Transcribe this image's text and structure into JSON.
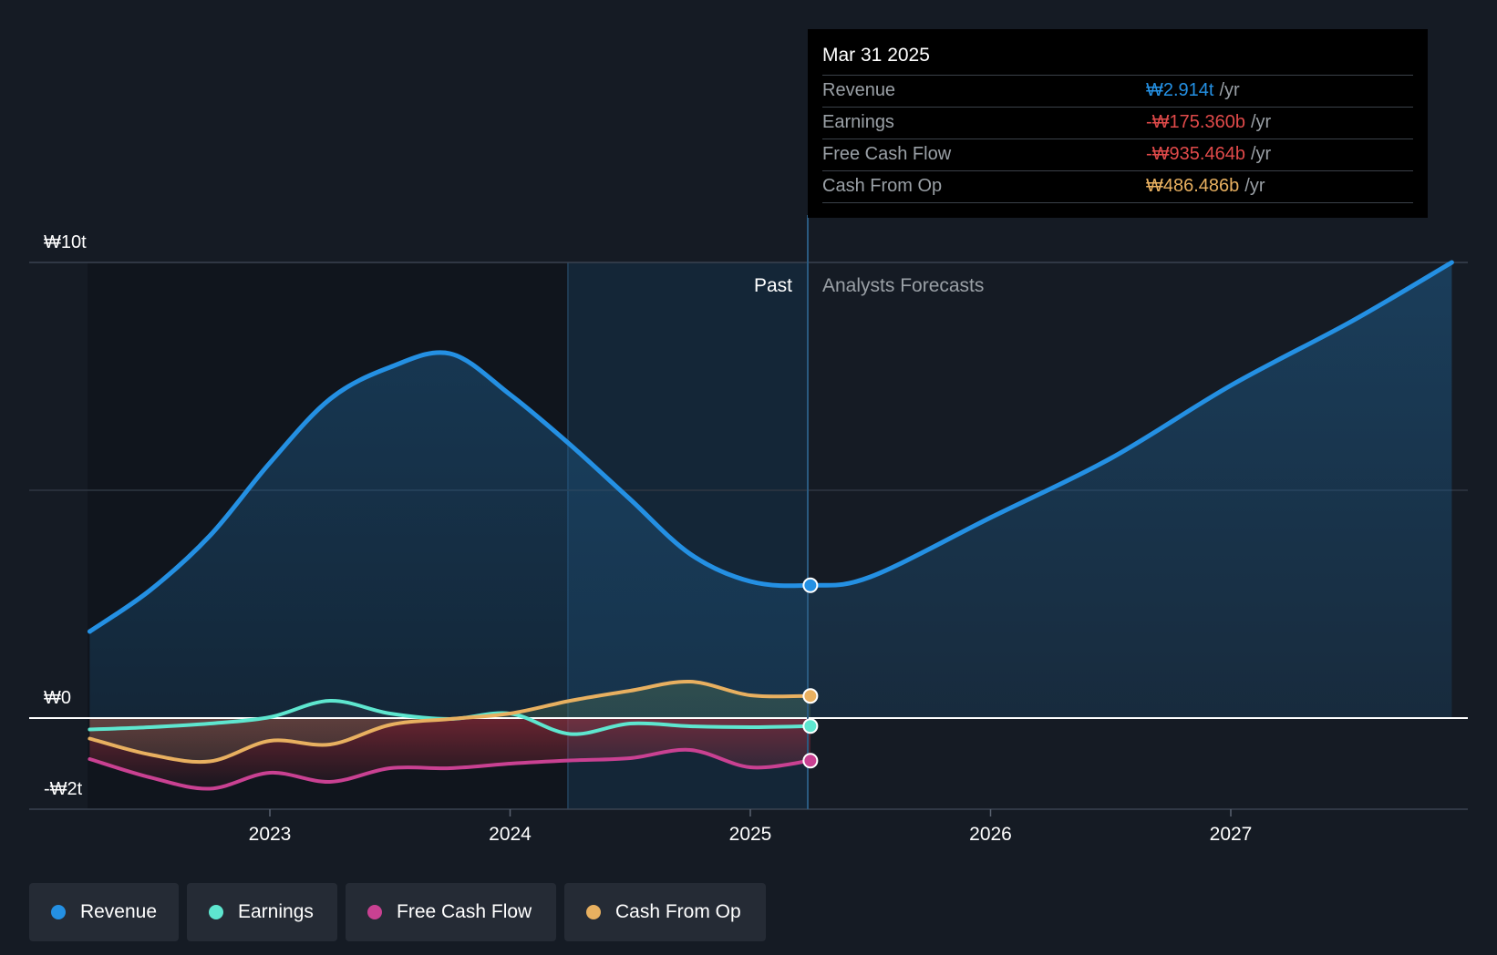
{
  "chart_data": {
    "type": "line",
    "title": "",
    "x_axis": {
      "ticks": [
        "2023",
        "2024",
        "2025",
        "2026",
        "2027"
      ]
    },
    "y_axis": {
      "labels": [
        "₩10t",
        "₩0",
        "-₩2t"
      ],
      "ylim": [
        -2,
        10
      ],
      "unit": "trillion KRW"
    },
    "past_label": "Past",
    "forecast_label": "Analysts Forecasts",
    "series": [
      {
        "name": "Revenue",
        "color": "#2490e3",
        "points": [
          [
            2022.25,
            1.9
          ],
          [
            2022.5,
            2.8
          ],
          [
            2022.75,
            4.0
          ],
          [
            2023.0,
            5.6
          ],
          [
            2023.25,
            7.0
          ],
          [
            2023.5,
            7.7
          ],
          [
            2023.75,
            8.0
          ],
          [
            2024.0,
            7.1
          ],
          [
            2024.25,
            6.0
          ],
          [
            2024.5,
            4.8
          ],
          [
            2024.75,
            3.6
          ],
          [
            2025.0,
            3.0
          ],
          [
            2025.25,
            2.914
          ],
          [
            2025.5,
            3.1
          ],
          [
            2026.0,
            4.4
          ],
          [
            2026.5,
            5.7
          ],
          [
            2027.0,
            7.3
          ],
          [
            2027.5,
            8.7
          ],
          [
            2027.92,
            10.0
          ]
        ]
      },
      {
        "name": "Earnings",
        "color": "#5ee6cf",
        "points": [
          [
            2022.25,
            -0.25
          ],
          [
            2022.5,
            -0.2
          ],
          [
            2022.75,
            -0.12
          ],
          [
            2023.0,
            0.02
          ],
          [
            2023.25,
            0.38
          ],
          [
            2023.5,
            0.1
          ],
          [
            2023.75,
            -0.02
          ],
          [
            2024.0,
            0.1
          ],
          [
            2024.25,
            -0.35
          ],
          [
            2024.5,
            -0.12
          ],
          [
            2024.75,
            -0.18
          ],
          [
            2025.0,
            -0.2
          ],
          [
            2025.25,
            -0.175
          ]
        ]
      },
      {
        "name": "Free Cash Flow",
        "color": "#c94192",
        "points": [
          [
            2022.25,
            -0.9
          ],
          [
            2022.5,
            -1.3
          ],
          [
            2022.75,
            -1.55
          ],
          [
            2023.0,
            -1.2
          ],
          [
            2023.25,
            -1.4
          ],
          [
            2023.5,
            -1.1
          ],
          [
            2023.75,
            -1.1
          ],
          [
            2024.0,
            -1.0
          ],
          [
            2024.25,
            -0.93
          ],
          [
            2024.5,
            -0.88
          ],
          [
            2024.75,
            -0.7
          ],
          [
            2025.0,
            -1.08
          ],
          [
            2025.25,
            -0.935
          ]
        ]
      },
      {
        "name": "Cash From Op",
        "color": "#e8b060",
        "points": [
          [
            2022.25,
            -0.45
          ],
          [
            2022.5,
            -0.8
          ],
          [
            2022.75,
            -0.95
          ],
          [
            2023.0,
            -0.5
          ],
          [
            2023.25,
            -0.58
          ],
          [
            2023.5,
            -0.15
          ],
          [
            2023.75,
            -0.02
          ],
          [
            2024.0,
            0.1
          ],
          [
            2024.25,
            0.38
          ],
          [
            2024.5,
            0.6
          ],
          [
            2024.75,
            0.8
          ],
          [
            2025.0,
            0.5
          ],
          [
            2025.25,
            0.486
          ]
        ]
      }
    ],
    "highlight_date": "Mar 31 2025"
  },
  "tooltip": {
    "date": "Mar 31 2025",
    "rows": [
      {
        "label": "Revenue",
        "value": "₩2.914t",
        "unit": "/yr",
        "color": "#2490e3"
      },
      {
        "label": "Earnings",
        "value": "-₩175.360b",
        "unit": "/yr",
        "color": "#e04a4a"
      },
      {
        "label": "Free Cash Flow",
        "value": "-₩935.464b",
        "unit": "/yr",
        "color": "#e04a4a"
      },
      {
        "label": "Cash From Op",
        "value": "₩486.486b",
        "unit": "/yr",
        "color": "#e8b060"
      }
    ]
  },
  "legend": [
    {
      "label": "Revenue",
      "color": "#2490e3"
    },
    {
      "label": "Earnings",
      "color": "#5ee6cf"
    },
    {
      "label": "Free Cash Flow",
      "color": "#c94192"
    },
    {
      "label": "Cash From Op",
      "color": "#e8b060"
    }
  ]
}
